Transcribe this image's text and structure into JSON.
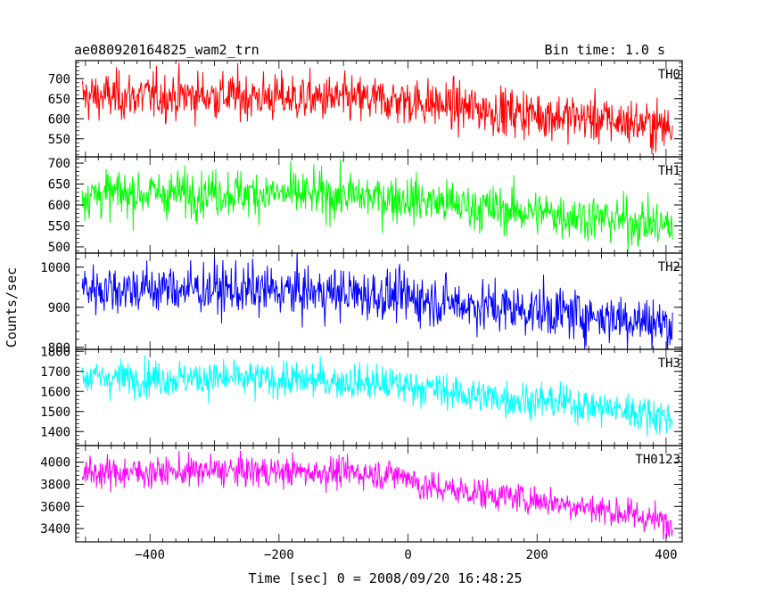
{
  "header": {
    "left_title": "ae080920164825_wam2_trn",
    "right_title": "Bin time: 1.0 s"
  },
  "chart_data": {
    "type": "line",
    "xlabel": "Time [sec] 0 = 2008/09/20 16:48:25",
    "ylabel": "Counts/sec",
    "xlim": [
      -515,
      425
    ],
    "x_ticks": [
      -400,
      -200,
      0,
      200,
      400
    ],
    "x_tick_labels": [
      "−400",
      "−200",
      "0",
      "200",
      "400"
    ],
    "x_range": [
      -505,
      410
    ],
    "bin_time_s": 1.0,
    "panels": [
      {
        "name": "TH0",
        "color": "#ff0000",
        "ylim": [
          505,
          745
        ],
        "yticks": [
          550,
          600,
          650,
          700
        ],
        "trend": [
          [
            -505,
            655
          ],
          [
            -300,
            658
          ],
          [
            -100,
            648
          ],
          [
            0,
            645
          ],
          [
            100,
            625
          ],
          [
            250,
            605
          ],
          [
            350,
            590
          ],
          [
            410,
            578
          ]
        ],
        "noise_sd": 30
      },
      {
        "name": "TH1",
        "color": "#00ff00",
        "ylim": [
          485,
          715
        ],
        "yticks": [
          500,
          550,
          600,
          650,
          700
        ],
        "trend": [
          [
            -505,
            625
          ],
          [
            -300,
            630
          ],
          [
            -100,
            622
          ],
          [
            0,
            615
          ],
          [
            100,
            595
          ],
          [
            250,
            575
          ],
          [
            350,
            560
          ],
          [
            410,
            548
          ]
        ],
        "noise_sd": 28
      },
      {
        "name": "TH2",
        "color": "#0000ff",
        "ylim": [
          795,
          1035
        ],
        "yticks": [
          800,
          900,
          1000
        ],
        "trend": [
          [
            -505,
            948
          ],
          [
            -300,
            945
          ],
          [
            -100,
            935
          ],
          [
            0,
            925
          ],
          [
            100,
            905
          ],
          [
            250,
            885
          ],
          [
            350,
            870
          ],
          [
            410,
            855
          ]
        ],
        "noise_sd": 32
      },
      {
        "name": "TH3",
        "color": "#00ffff",
        "ylim": [
          1330,
          1810
        ],
        "yticks": [
          1400,
          1500,
          1600,
          1700,
          1800
        ],
        "trend": [
          [
            -505,
            1670
          ],
          [
            -300,
            1665
          ],
          [
            -100,
            1650
          ],
          [
            0,
            1630
          ],
          [
            100,
            1580
          ],
          [
            250,
            1540
          ],
          [
            350,
            1500
          ],
          [
            410,
            1470
          ]
        ],
        "noise_sd": 45
      },
      {
        "name": "TH0123",
        "color": "#ff00ff",
        "ylim": [
          3280,
          4150
        ],
        "yticks": [
          3400,
          3600,
          3800,
          4000
        ],
        "trend": [
          [
            -505,
            3900
          ],
          [
            -300,
            3920
          ],
          [
            -100,
            3910
          ],
          [
            0,
            3880
          ],
          [
            20,
            3780
          ],
          [
            100,
            3730
          ],
          [
            250,
            3620
          ],
          [
            350,
            3520
          ],
          [
            410,
            3440
          ]
        ],
        "noise_sd": 70
      }
    ]
  }
}
